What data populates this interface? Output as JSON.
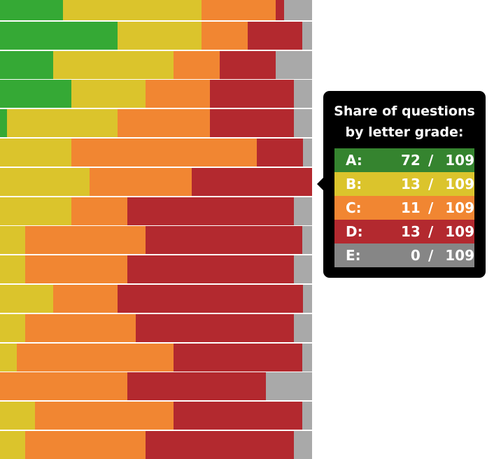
{
  "chart_data": {
    "type": "bar",
    "orientation": "horizontal",
    "stacked": true,
    "normalized": true,
    "legend": "none",
    "grid": false,
    "colors": {
      "A": "#35a935",
      "B": "#dbc42c",
      "C": "#f18632",
      "D": "#b3292f",
      "E": "#a9a9a9"
    },
    "rows": [
      {
        "A": 20.2,
        "B": 44.4,
        "C": 23.8,
        "D": 2.7,
        "E": 9.0
      },
      {
        "A": 37.7,
        "B": 26.9,
        "C": 14.8,
        "D": 17.5,
        "E": 3.1
      },
      {
        "A": 17.0,
        "B": 38.6,
        "C": 14.8,
        "D": 17.9,
        "E": 11.7
      },
      {
        "A": 22.9,
        "B": 23.8,
        "C": 20.6,
        "D": 26.9,
        "E": 5.8
      },
      {
        "A": 2.2,
        "B": 35.4,
        "C": 29.6,
        "D": 26.9,
        "E": 5.8
      },
      {
        "A": 0,
        "B": 22.9,
        "C": 59.4,
        "D": 14.8,
        "E": 2.9
      },
      {
        "A": 0,
        "B": 28.7,
        "C": 32.7,
        "D": 38.6,
        "E": 0
      },
      {
        "A": 0,
        "B": 22.9,
        "C": 17.9,
        "D": 53.4,
        "E": 5.8
      },
      {
        "A": 0,
        "B": 8.1,
        "C": 38.6,
        "D": 50.2,
        "E": 3.1
      },
      {
        "A": 0,
        "B": 8.1,
        "C": 32.7,
        "D": 53.4,
        "E": 5.8
      },
      {
        "A": 0,
        "B": 17.0,
        "C": 20.6,
        "D": 59.4,
        "E": 3.0
      },
      {
        "A": 0,
        "B": 8.1,
        "C": 35.4,
        "D": 50.7,
        "E": 5.8
      },
      {
        "A": 0,
        "B": 5.4,
        "C": 50.2,
        "D": 41.3,
        "E": 3.1
      },
      {
        "A": 0,
        "B": 0,
        "C": 40.8,
        "D": 44.4,
        "E": 14.8
      },
      {
        "A": 0,
        "B": 11.2,
        "C": 44.4,
        "D": 41.3,
        "E": 3.1
      },
      {
        "A": 0,
        "B": 8.1,
        "C": 38.6,
        "D": 47.5,
        "E": 5.8
      }
    ]
  },
  "tooltip": {
    "title_line1": "Share of questions",
    "title_line2": "by letter grade:",
    "rows": [
      {
        "grade": "A:",
        "count": "72",
        "slash": "/",
        "total": "109",
        "color": "#35842f"
      },
      {
        "grade": "B:",
        "count": "13",
        "slash": "/",
        "total": "109",
        "color": "#dbc42c"
      },
      {
        "grade": "C:",
        "count": "11",
        "slash": "/",
        "total": "109",
        "color": "#f18632"
      },
      {
        "grade": "D:",
        "count": "13",
        "slash": "/",
        "total": "109",
        "color": "#b3292f"
      },
      {
        "grade": "E:",
        "count": "0",
        "slash": "/",
        "total": "109",
        "color": "#868686"
      }
    ]
  }
}
